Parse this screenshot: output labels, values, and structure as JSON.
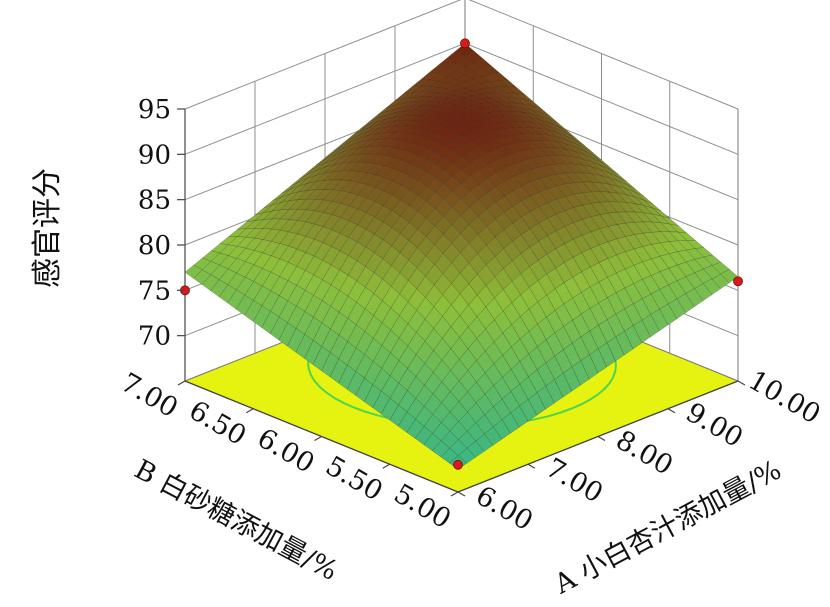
{
  "chart_data": {
    "type": "surface",
    "zlabel": "感官评分",
    "xlabel": "A 小白杏汁添加量/%",
    "ylabel": "B 白砂糖添加量/%",
    "x_ticks": [
      "6.00",
      "7.00",
      "8.00",
      "9.00",
      "10.00"
    ],
    "y_ticks": [
      "5.00",
      "5.50",
      "6.00",
      "6.50",
      "7.00"
    ],
    "z_ticks": [
      "70",
      "75",
      "80",
      "85",
      "90",
      "95"
    ],
    "xlim": [
      6,
      10
    ],
    "ylim": [
      5,
      7
    ],
    "zlim": [
      65,
      95
    ],
    "surface_corners": [
      {
        "x": 6,
        "y": 5,
        "z": 67.5
      },
      {
        "x": 10,
        "y": 5,
        "z": 76.5
      },
      {
        "x": 6,
        "y": 7,
        "z": 77.0
      },
      {
        "x": 10,
        "y": 7,
        "z": 90.0
      }
    ],
    "surface_peak": {
      "x": 8.6,
      "y": 6.3,
      "z": 90.0
    },
    "design_points": [
      {
        "x": 6,
        "y": 5,
        "z": 68.0
      },
      {
        "x": 10,
        "y": 5,
        "z": 76.0
      },
      {
        "x": 6,
        "y": 7,
        "z": 75.0
      },
      {
        "x": 10,
        "y": 7,
        "z": 90.0
      }
    ],
    "colors": {
      "floor": "#e6f20f",
      "contour": "#3fcf57",
      "grid": "#8f8f8f",
      "surface_high": "#6e2410",
      "surface_mid": "#8fbf3a",
      "surface_low": "#2fb58e",
      "design_point": "#d41c1c"
    }
  }
}
